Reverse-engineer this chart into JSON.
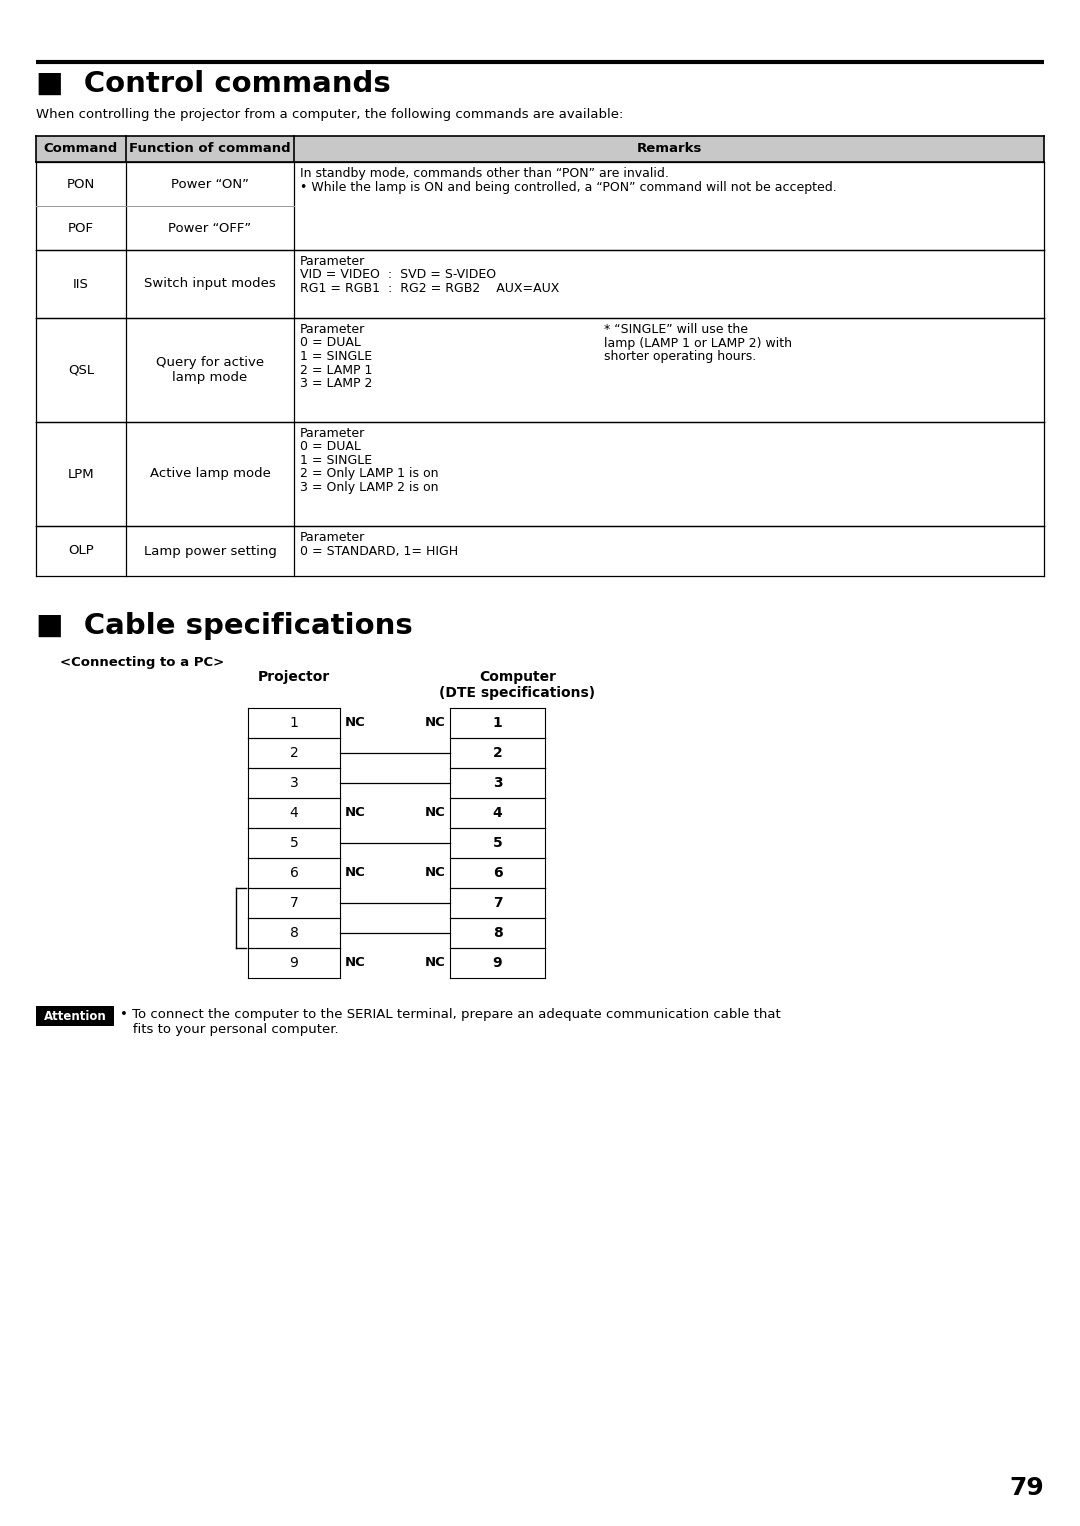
{
  "bg_color": "#ffffff",
  "page_number": "79",
  "section1_title": "■  Control commands",
  "section1_subtitle": "When controlling the projector from a computer, the following commands are available:",
  "section2_title": "■  Cable specifications",
  "connecting_label": "<Connecting to a PC>",
  "projector_label": "Projector",
  "computer_label": "Computer\n(DTE specifications)",
  "cable_rows": [
    {
      "proj": "1",
      "nc": true,
      "comp": "1"
    },
    {
      "proj": "2",
      "nc": false,
      "comp": "2"
    },
    {
      "proj": "3",
      "nc": false,
      "comp": "3"
    },
    {
      "proj": "4",
      "nc": true,
      "comp": "4"
    },
    {
      "proj": "5",
      "nc": false,
      "comp": "5"
    },
    {
      "proj": "6",
      "nc": true,
      "comp": "6"
    },
    {
      "proj": "7",
      "nc": false,
      "comp": "7"
    },
    {
      "proj": "8",
      "nc": false,
      "comp": "8"
    },
    {
      "proj": "9",
      "nc": true,
      "comp": "9"
    }
  ],
  "attention_text": "• To connect the computer to the SERIAL terminal, prepare an adequate communication cable that\n   fits to your personal computer."
}
